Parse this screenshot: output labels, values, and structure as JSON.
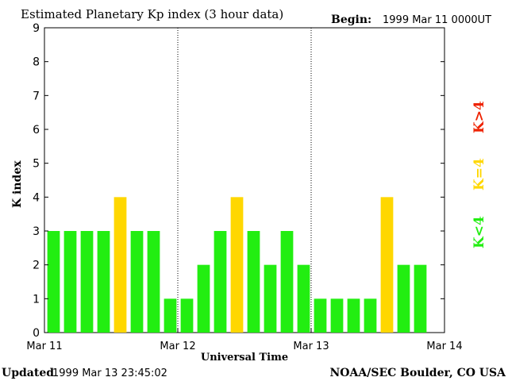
{
  "header": {
    "title": "Estimated Planetary Kp index (3 hour data)",
    "begin_label": "Begin:",
    "begin_value": "1999 Mar 11 0000UT"
  },
  "footer": {
    "updated_label": "Updated",
    "updated_value": "1999 Mar 13 23:45:02",
    "credit": "NOAA/SEC Boulder, CO USA"
  },
  "legend": {
    "below": "K<4",
    "equal": "K=4",
    "above": "K>4"
  },
  "colors": {
    "below": "#22ee11",
    "equal": "#ffd700",
    "above": "#ee2200",
    "axis": "#000000"
  },
  "chart_data": {
    "type": "bar",
    "title": "Estimated Planetary Kp index (3 hour data)",
    "xlabel": "Universal Time",
    "ylabel": "K index",
    "ylim": [
      0,
      9
    ],
    "yticks": [
      "0",
      "1",
      "2",
      "3",
      "4",
      "5",
      "6",
      "7",
      "8",
      "9"
    ],
    "xticks": [
      "Mar 11",
      "Mar 12",
      "Mar 13",
      "Mar 14"
    ],
    "day_separators": [
      1,
      2
    ],
    "slots_per_day": 8,
    "values": [
      3,
      3,
      3,
      3,
      4,
      3,
      3,
      1,
      1,
      2,
      3,
      4,
      3,
      2,
      3,
      2,
      1,
      1,
      1,
      1,
      4,
      2,
      2
    ]
  }
}
